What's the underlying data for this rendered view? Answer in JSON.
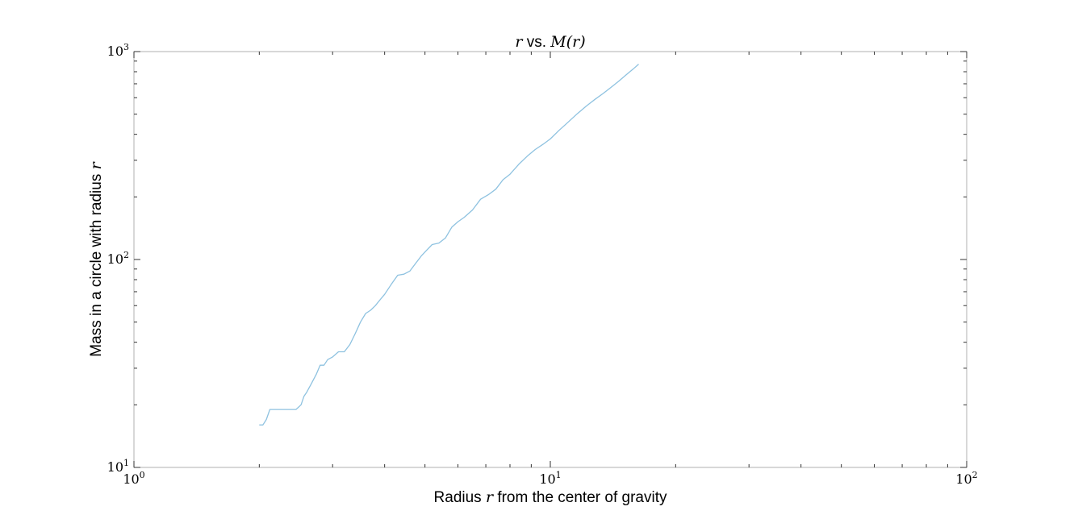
{
  "chart_data": {
    "type": "line",
    "title": {
      "var": "r",
      "mid": " vs. ",
      "func": "M(r)"
    },
    "xlabel": {
      "pre": "Radius ",
      "var": "r",
      "post": " from the center of gravity"
    },
    "ylabel": {
      "pre": "Mass in a circle with radius ",
      "var": "r"
    },
    "xscale": "log",
    "yscale": "log",
    "xlim": [
      1,
      100
    ],
    "ylim": [
      10,
      1000
    ],
    "grid": false,
    "x_ticks": [
      {
        "base": "10",
        "exp": "0"
      },
      {
        "base": "10",
        "exp": "1"
      },
      {
        "base": "10",
        "exp": "2"
      }
    ],
    "y_ticks": [
      {
        "base": "10",
        "exp": "1"
      },
      {
        "base": "10",
        "exp": "2"
      },
      {
        "base": "10",
        "exp": "3"
      }
    ],
    "series": [
      {
        "color": "#8ec2e0",
        "x": [
          2.0,
          2.04,
          2.08,
          2.12,
          2.2,
          2.3,
          2.45,
          2.52,
          2.56,
          2.6,
          2.66,
          2.74,
          2.8,
          2.86,
          2.92,
          3.0,
          3.1,
          3.2,
          3.3,
          3.4,
          3.5,
          3.6,
          3.7,
          3.8,
          3.9,
          4.0,
          4.15,
          4.3,
          4.45,
          4.6,
          4.75,
          4.9,
          5.05,
          5.2,
          5.4,
          5.6,
          5.8,
          6.0,
          6.2,
          6.5,
          6.8,
          7.1,
          7.4,
          7.7,
          8.0,
          8.4,
          8.8,
          9.2,
          9.6,
          10.0,
          10.5,
          11.0,
          11.6,
          12.2,
          12.8,
          13.4,
          14.0,
          14.6,
          15.2,
          15.8,
          16.3
        ],
        "y": [
          16,
          16,
          17,
          19,
          19,
          19,
          19,
          20,
          22,
          23,
          25,
          28,
          31,
          31,
          33,
          34,
          36,
          36,
          39,
          44,
          50,
          55,
          57,
          60,
          64,
          68,
          76,
          84,
          85,
          88,
          96,
          104,
          111,
          118,
          120,
          127,
          143,
          152,
          159,
          173,
          195,
          205,
          218,
          242,
          257,
          287,
          314,
          338,
          358,
          380,
          418,
          455,
          502,
          547,
          589,
          629,
          674,
          720,
          772,
          823,
          870
        ]
      }
    ]
  }
}
